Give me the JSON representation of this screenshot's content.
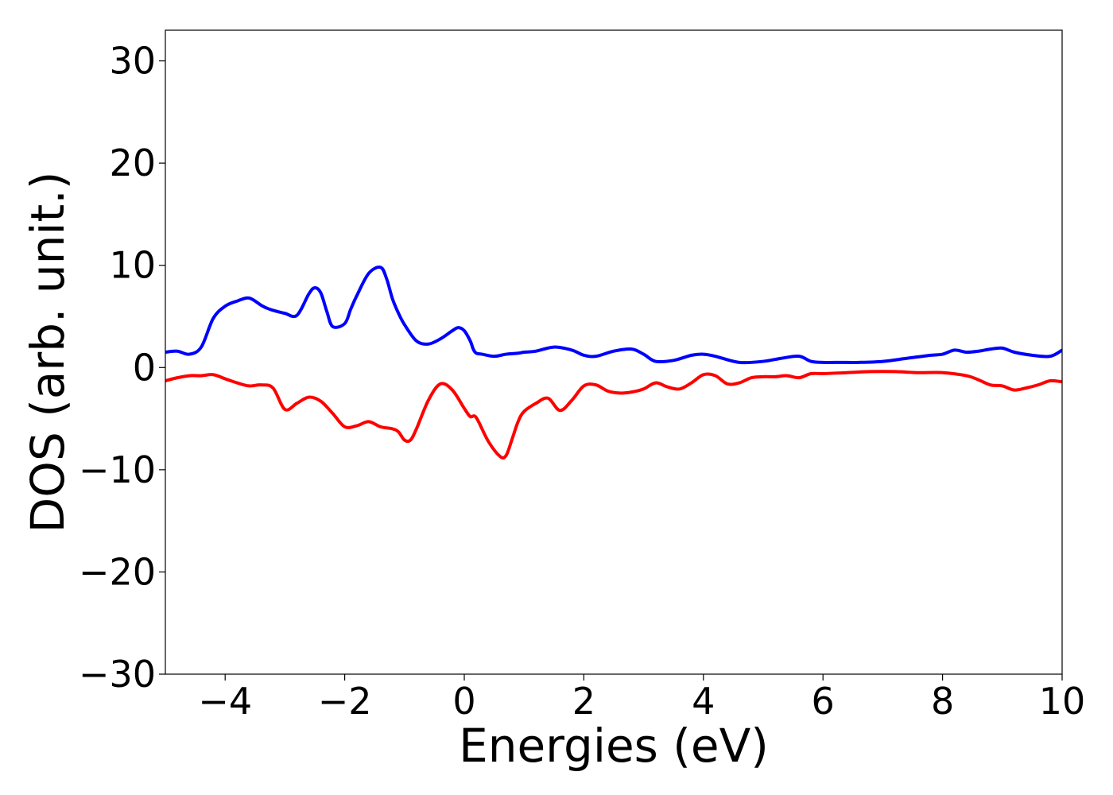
{
  "chart_data": {
    "type": "line",
    "title": "",
    "xlabel": "Energies (eV)",
    "ylabel": "DOS (arb. unit.)",
    "xlim": [
      -5,
      10
    ],
    "ylim": [
      -30,
      33
    ],
    "xticks": [
      -4,
      -2,
      0,
      2,
      4,
      6,
      8,
      10
    ],
    "xtick_labels": [
      "−4",
      "−2",
      "0",
      "2",
      "4",
      "6",
      "8",
      "10"
    ],
    "yticks": [
      -30,
      -20,
      -10,
      0,
      10,
      20,
      30
    ],
    "ytick_labels": [
      "−30",
      "−20",
      "−10",
      "0",
      "10",
      "20",
      "30"
    ],
    "grid": false,
    "legend": false,
    "series": [
      {
        "color": "#0000ff",
        "x": [
          -5.0,
          -4.8,
          -4.6,
          -4.4,
          -4.2,
          -4.0,
          -3.8,
          -3.6,
          -3.4,
          -3.3,
          -3.2,
          -3.0,
          -2.8,
          -2.6,
          -2.5,
          -2.4,
          -2.3,
          -2.2,
          -2.0,
          -1.9,
          -1.8,
          -1.6,
          -1.4,
          -1.3,
          -1.2,
          -1.1,
          -1.0,
          -0.8,
          -0.6,
          -0.4,
          -0.2,
          -0.1,
          0.0,
          0.1,
          0.15,
          0.2,
          0.3,
          0.5,
          0.7,
          0.9,
          1.0,
          1.2,
          1.5,
          1.8,
          2.0,
          2.2,
          2.5,
          2.8,
          3.0,
          3.2,
          3.5,
          3.8,
          4.0,
          4.2,
          4.6,
          5.0,
          5.3,
          5.6,
          5.8,
          6.0,
          6.3,
          6.6,
          7.0,
          7.4,
          7.8,
          8.0,
          8.2,
          8.4,
          8.6,
          8.8,
          9.0,
          9.2,
          9.5,
          9.8,
          10.0
        ],
        "y": [
          1.5,
          1.6,
          1.3,
          2.0,
          4.8,
          6.0,
          6.5,
          6.8,
          6.1,
          5.8,
          5.6,
          5.3,
          5.1,
          7.2,
          7.8,
          7.3,
          5.5,
          4.0,
          4.3,
          5.7,
          7.0,
          9.2,
          9.8,
          8.7,
          6.7,
          5.3,
          4.2,
          2.6,
          2.3,
          2.8,
          3.6,
          3.9,
          3.6,
          2.6,
          1.8,
          1.4,
          1.3,
          1.1,
          1.3,
          1.4,
          1.5,
          1.6,
          2.0,
          1.7,
          1.2,
          1.1,
          1.6,
          1.8,
          1.3,
          0.6,
          0.7,
          1.2,
          1.3,
          1.1,
          0.5,
          0.6,
          0.9,
          1.1,
          0.6,
          0.5,
          0.5,
          0.5,
          0.6,
          0.9,
          1.2,
          1.3,
          1.7,
          1.5,
          1.6,
          1.8,
          1.9,
          1.5,
          1.2,
          1.1,
          1.7
        ]
      },
      {
        "color": "#ff0000",
        "x": [
          -5.0,
          -4.8,
          -4.6,
          -4.4,
          -4.2,
          -4.0,
          -3.8,
          -3.6,
          -3.4,
          -3.2,
          -3.0,
          -2.8,
          -2.6,
          -2.4,
          -2.2,
          -2.0,
          -1.8,
          -1.6,
          -1.4,
          -1.2,
          -1.1,
          -1.0,
          -0.9,
          -0.8,
          -0.6,
          -0.4,
          -0.2,
          0.0,
          0.1,
          0.2,
          0.4,
          0.6,
          0.7,
          0.8,
          0.9,
          1.0,
          1.2,
          1.4,
          1.6,
          1.8,
          2.0,
          2.2,
          2.4,
          2.6,
          2.8,
          3.0,
          3.2,
          3.4,
          3.6,
          3.8,
          4.0,
          4.2,
          4.4,
          4.6,
          4.8,
          5.0,
          5.2,
          5.4,
          5.6,
          5.8,
          6.0,
          6.4,
          6.8,
          7.2,
          7.6,
          8.0,
          8.4,
          8.6,
          8.8,
          9.0,
          9.2,
          9.4,
          9.6,
          9.8,
          10.0
        ],
        "y": [
          -1.3,
          -1.0,
          -0.8,
          -0.8,
          -0.7,
          -1.1,
          -1.5,
          -1.8,
          -1.7,
          -2.0,
          -4.1,
          -3.5,
          -2.9,
          -3.3,
          -4.5,
          -5.8,
          -5.7,
          -5.3,
          -5.8,
          -6.0,
          -6.3,
          -7.1,
          -7.1,
          -6.0,
          -3.2,
          -1.6,
          -2.2,
          -4.0,
          -4.8,
          -4.9,
          -7.2,
          -8.7,
          -8.6,
          -7.0,
          -5.3,
          -4.3,
          -3.5,
          -3.0,
          -4.2,
          -3.2,
          -1.8,
          -1.7,
          -2.3,
          -2.5,
          -2.4,
          -2.1,
          -1.5,
          -1.9,
          -2.1,
          -1.5,
          -0.7,
          -0.8,
          -1.6,
          -1.5,
          -1.0,
          -0.9,
          -0.9,
          -0.8,
          -1.0,
          -0.6,
          -0.6,
          -0.5,
          -0.4,
          -0.4,
          -0.5,
          -0.5,
          -0.8,
          -1.2,
          -1.7,
          -1.8,
          -2.2,
          -2.0,
          -1.7,
          -1.3,
          -1.4
        ]
      }
    ]
  }
}
